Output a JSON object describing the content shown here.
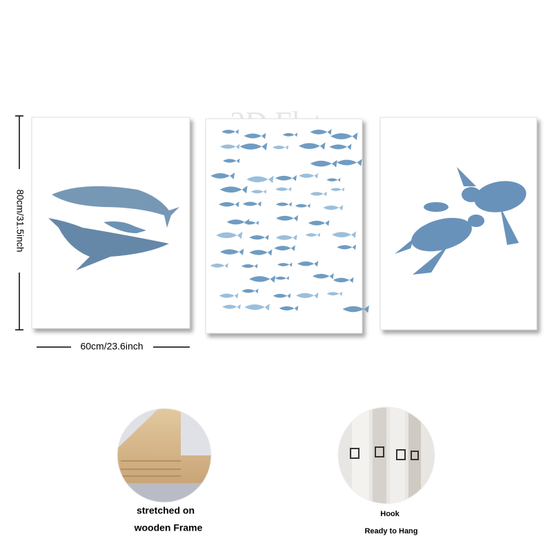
{
  "watermark": "2D Flat",
  "dimensions": {
    "height": "80cm/31.5inch",
    "width": "60cm/23.6inch"
  },
  "features": [
    {
      "lines": [
        "stretched on",
        "wooden Frame"
      ]
    },
    {
      "lines": [
        "Hook",
        "Ready to Hang"
      ]
    }
  ]
}
